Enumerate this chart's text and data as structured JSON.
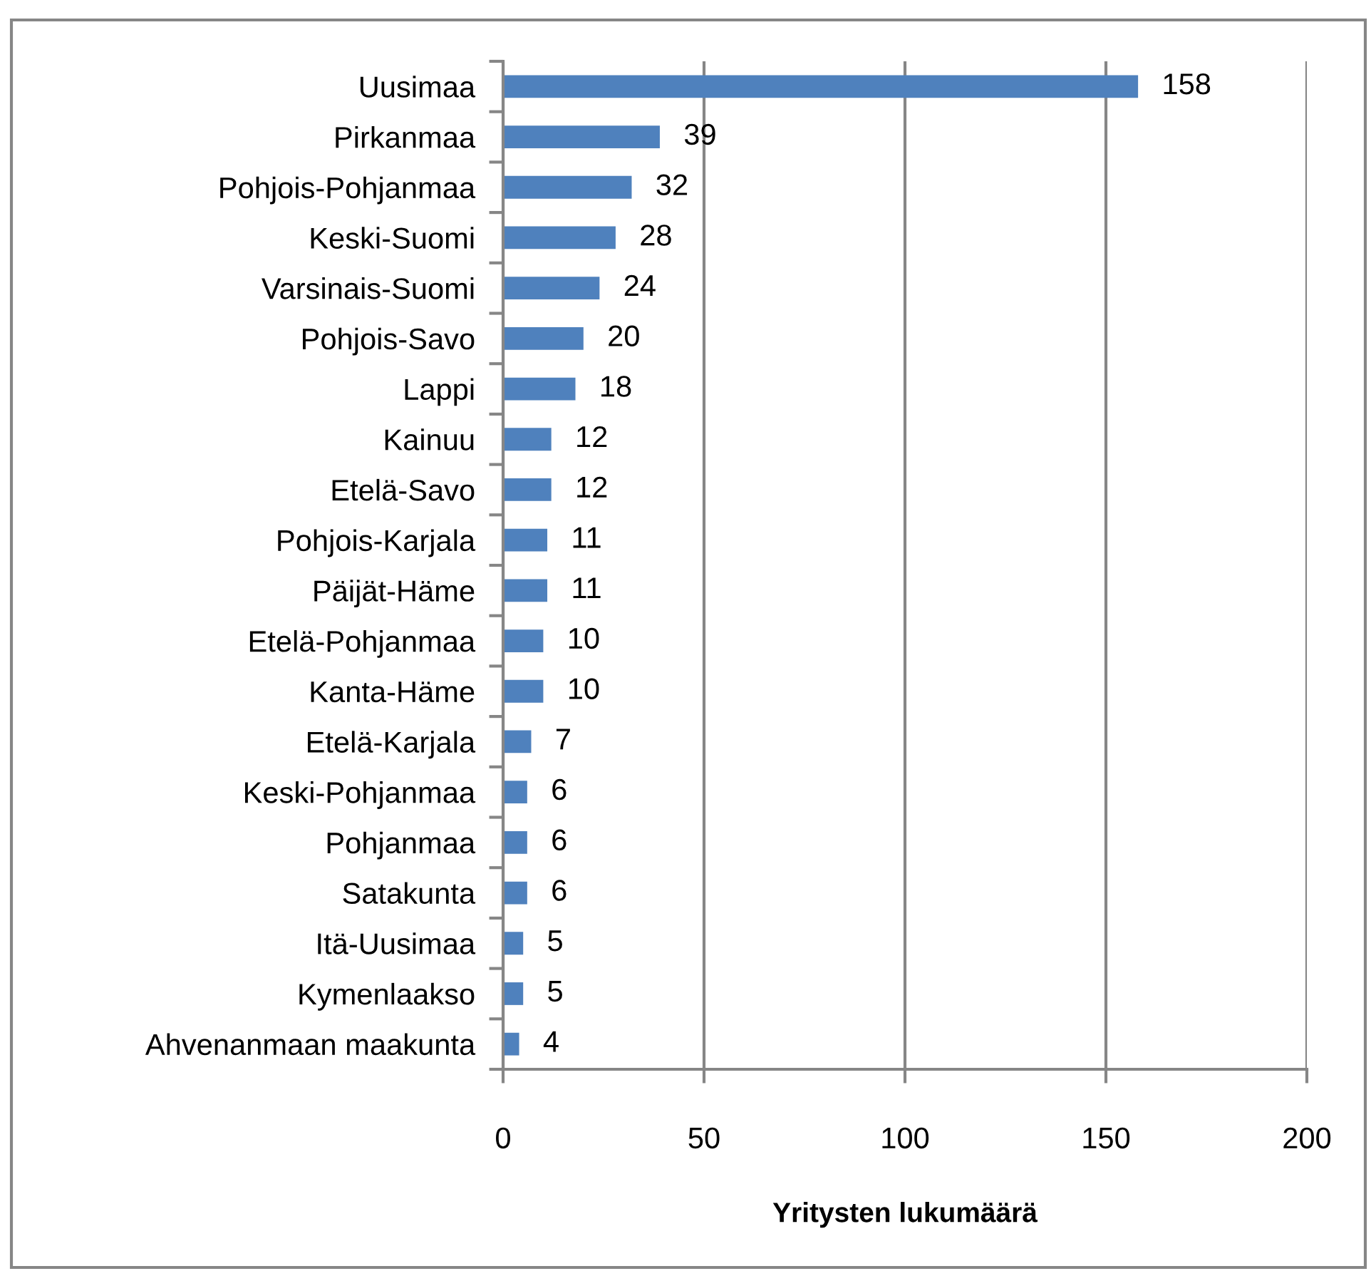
{
  "chart_data": {
    "type": "bar",
    "orientation": "horizontal",
    "xlabel": "Yritysten lukumäärä",
    "categories": [
      "Uusimaa",
      "Pirkanmaa",
      "Pohjois-Pohjanmaa",
      "Keski-Suomi",
      "Varsinais-Suomi",
      "Pohjois-Savo",
      "Lappi",
      "Kainuu",
      "Etelä-Savo",
      "Pohjois-Karjala",
      "Päijät-Häme",
      "Etelä-Pohjanmaa",
      "Kanta-Häme",
      "Etelä-Karjala",
      "Keski-Pohjanmaa",
      "Pohjanmaa",
      "Satakunta",
      "Itä-Uusimaa",
      "Kymenlaakso",
      "Ahvenanmaan maakunta"
    ],
    "values": [
      158,
      39,
      32,
      28,
      24,
      20,
      18,
      12,
      12,
      11,
      11,
      10,
      10,
      7,
      6,
      6,
      6,
      5,
      5,
      4
    ],
    "color": "#4f81bd",
    "xlim": [
      0,
      200
    ],
    "xticks": [
      0,
      50,
      100,
      150,
      200
    ],
    "grid": "x",
    "data_labels": true
  }
}
